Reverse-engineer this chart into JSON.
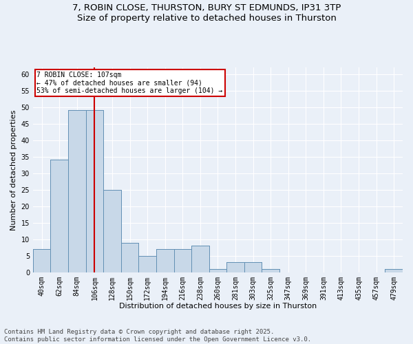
{
  "title_line1": "7, ROBIN CLOSE, THURSTON, BURY ST EDMUNDS, IP31 3TP",
  "title_line2": "Size of property relative to detached houses in Thurston",
  "xlabel": "Distribution of detached houses by size in Thurston",
  "ylabel": "Number of detached properties",
  "footer": "Contains HM Land Registry data © Crown copyright and database right 2025.\nContains public sector information licensed under the Open Government Licence v3.0.",
  "categories": [
    "40sqm",
    "62sqm",
    "84sqm",
    "106sqm",
    "128sqm",
    "150sqm",
    "172sqm",
    "194sqm",
    "216sqm",
    "238sqm",
    "260sqm",
    "281sqm",
    "303sqm",
    "325sqm",
    "347sqm",
    "369sqm",
    "391sqm",
    "413sqm",
    "435sqm",
    "457sqm",
    "479sqm"
  ],
  "values": [
    7,
    34,
    49,
    49,
    25,
    9,
    5,
    7,
    7,
    8,
    1,
    3,
    3,
    1,
    0,
    0,
    0,
    0,
    0,
    0,
    1
  ],
  "bar_color": "#c8d8e8",
  "bar_edge_color": "#5a8ab0",
  "annotation_text": "7 ROBIN CLOSE: 107sqm\n← 47% of detached houses are smaller (94)\n53% of semi-detached houses are larger (104) →",
  "annotation_box_color": "#ffffff",
  "annotation_box_edge_color": "#cc0000",
  "vline_color": "#cc0000",
  "vline_x_index": 3.0,
  "ylim": [
    0,
    62
  ],
  "yticks": [
    0,
    5,
    10,
    15,
    20,
    25,
    30,
    35,
    40,
    45,
    50,
    55,
    60
  ],
  "background_color": "#eaf0f8",
  "grid_color": "#ffffff",
  "title_fontsize": 9.5,
  "axis_label_fontsize": 8,
  "tick_fontsize": 7,
  "footer_fontsize": 6.5
}
